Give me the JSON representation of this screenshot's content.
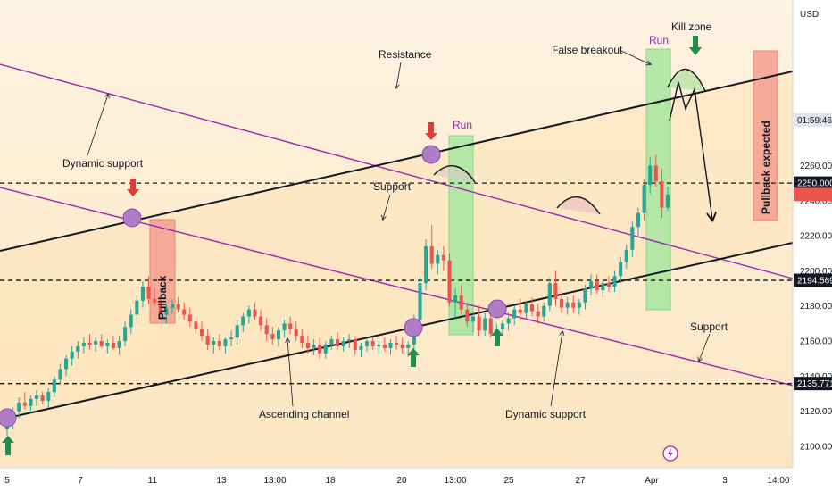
{
  "chart_data": {
    "type": "candlestick",
    "currency": "USD",
    "y_range": [
      2090,
      2275
    ],
    "y_ticks": [
      2100,
      2120,
      2140,
      2160,
      2180,
      2200,
      2220,
      2240,
      2260
    ],
    "y_tick_labels": [
      "2100.000",
      "2120.000",
      "2140.000",
      "2160.000",
      "2180.000",
      "2200.000",
      "2220.000",
      "2240.000",
      "2260.000"
    ],
    "x_tick_labels": [
      "5",
      "7",
      "11",
      "13",
      "13:00",
      "18",
      "20",
      "13:00",
      "25",
      "27",
      "Apr",
      "3",
      "14:00"
    ],
    "price_levels": [
      {
        "value": 2250.0,
        "label": "2250.000"
      },
      {
        "value": 2194.569,
        "label": "2194.569"
      },
      {
        "value": 2135.771,
        "label": "2135.771"
      }
    ],
    "countdown": "01:59:46",
    "current_price": 2243.5,
    "candles": [
      [
        2110,
        2118,
        2106,
        2114
      ],
      [
        2114,
        2122,
        2110,
        2120
      ],
      [
        2120,
        2128,
        2116,
        2125
      ],
      [
        2125,
        2131,
        2121,
        2123
      ],
      [
        2123,
        2129,
        2119,
        2127
      ],
      [
        2127,
        2132,
        2123,
        2129
      ],
      [
        2129,
        2131,
        2124,
        2126
      ],
      [
        2126,
        2133,
        2122,
        2131
      ],
      [
        2131,
        2140,
        2128,
        2138
      ],
      [
        2138,
        2147,
        2135,
        2144
      ],
      [
        2144,
        2152,
        2140,
        2150
      ],
      [
        2150,
        2157,
        2146,
        2154
      ],
      [
        2154,
        2160,
        2150,
        2157
      ],
      [
        2157,
        2162,
        2153,
        2159
      ],
      [
        2159,
        2164,
        2155,
        2158
      ],
      [
        2158,
        2162,
        2154,
        2160
      ],
      [
        2160,
        2164,
        2156,
        2157
      ],
      [
        2157,
        2161,
        2153,
        2159
      ],
      [
        2159,
        2163,
        2155,
        2156
      ],
      [
        2156,
        2163,
        2152,
        2160
      ],
      [
        2160,
        2171,
        2157,
        2168
      ],
      [
        2168,
        2178,
        2164,
        2175
      ],
      [
        2175,
        2186,
        2171,
        2183
      ],
      [
        2183,
        2194,
        2179,
        2191
      ],
      [
        2191,
        2197,
        2181,
        2184
      ],
      [
        2184,
        2190,
        2180,
        2182
      ],
      [
        2182,
        2186,
        2172,
        2175
      ],
      [
        2175,
        2181,
        2170,
        2179
      ],
      [
        2179,
        2184,
        2175,
        2181
      ],
      [
        2181,
        2185,
        2176,
        2178
      ],
      [
        2178,
        2182,
        2172,
        2175
      ],
      [
        2175,
        2179,
        2168,
        2171
      ],
      [
        2171,
        2175,
        2164,
        2167
      ],
      [
        2167,
        2171,
        2160,
        2163
      ],
      [
        2163,
        2167,
        2155,
        2158
      ],
      [
        2158,
        2162,
        2153,
        2160
      ],
      [
        2160,
        2164,
        2155,
        2157
      ],
      [
        2157,
        2162,
        2153,
        2161
      ],
      [
        2161,
        2166,
        2157,
        2162
      ],
      [
        2162,
        2172,
        2158,
        2169
      ],
      [
        2169,
        2176,
        2165,
        2174
      ],
      [
        2174,
        2180,
        2170,
        2178
      ],
      [
        2178,
        2182,
        2172,
        2174
      ],
      [
        2174,
        2178,
        2166,
        2169
      ],
      [
        2169,
        2173,
        2160,
        2164
      ],
      [
        2164,
        2168,
        2158,
        2161
      ],
      [
        2161,
        2168,
        2157,
        2166
      ],
      [
        2166,
        2172,
        2162,
        2170
      ],
      [
        2170,
        2174,
        2164,
        2167
      ],
      [
        2167,
        2171,
        2160,
        2163
      ],
      [
        2163,
        2167,
        2156,
        2159
      ],
      [
        2159,
        2163,
        2153,
        2156
      ],
      [
        2156,
        2161,
        2152,
        2158
      ],
      [
        2158,
        2162,
        2150,
        2153
      ],
      [
        2153,
        2160,
        2150,
        2158
      ],
      [
        2158,
        2163,
        2155,
        2161
      ],
      [
        2161,
        2165,
        2155,
        2157
      ],
      [
        2157,
        2162,
        2154,
        2160
      ],
      [
        2160,
        2164,
        2156,
        2161
      ],
      [
        2161,
        2163,
        2152,
        2155
      ],
      [
        2155,
        2159,
        2151,
        2157
      ],
      [
        2157,
        2161,
        2154,
        2160
      ],
      [
        2160,
        2162,
        2155,
        2157
      ],
      [
        2157,
        2160,
        2153,
        2158
      ],
      [
        2158,
        2162,
        2154,
        2156
      ],
      [
        2156,
        2161,
        2152,
        2159
      ],
      [
        2159,
        2163,
        2155,
        2158
      ],
      [
        2158,
        2162,
        2153,
        2156
      ],
      [
        2156,
        2160,
        2151,
        2158
      ],
      [
        2158,
        2175,
        2155,
        2172
      ],
      [
        2172,
        2197,
        2168,
        2193
      ],
      [
        2193,
        2218,
        2189,
        2214
      ],
      [
        2214,
        2226,
        2201,
        2204
      ],
      [
        2204,
        2212,
        2198,
        2209
      ],
      [
        2209,
        2214,
        2200,
        2206
      ],
      [
        2206,
        2210,
        2180,
        2182
      ],
      [
        2182,
        2190,
        2173,
        2186
      ],
      [
        2186,
        2192,
        2175,
        2178
      ],
      [
        2178,
        2182,
        2168,
        2171
      ],
      [
        2171,
        2177,
        2165,
        2174
      ],
      [
        2174,
        2180,
        2163,
        2166
      ],
      [
        2166,
        2176,
        2163,
        2173
      ],
      [
        2173,
        2178,
        2162,
        2164
      ],
      [
        2164,
        2170,
        2160,
        2167
      ],
      [
        2167,
        2172,
        2163,
        2170
      ],
      [
        2170,
        2176,
        2166,
        2173
      ],
      [
        2173,
        2180,
        2169,
        2178
      ],
      [
        2178,
        2184,
        2172,
        2176
      ],
      [
        2176,
        2183,
        2173,
        2181
      ],
      [
        2181,
        2185,
        2174,
        2177
      ],
      [
        2177,
        2181,
        2170,
        2174
      ],
      [
        2174,
        2182,
        2171,
        2180
      ],
      [
        2180,
        2196,
        2177,
        2193
      ],
      [
        2193,
        2200,
        2180,
        2184
      ],
      [
        2184,
        2188,
        2176,
        2179
      ],
      [
        2179,
        2185,
        2175,
        2182
      ],
      [
        2182,
        2186,
        2176,
        2179
      ],
      [
        2179,
        2184,
        2175,
        2182
      ],
      [
        2182,
        2192,
        2178,
        2190
      ],
      [
        2190,
        2198,
        2186,
        2194
      ],
      [
        2194,
        2198,
        2187,
        2189
      ],
      [
        2189,
        2195,
        2185,
        2193
      ],
      [
        2193,
        2197,
        2188,
        2191
      ],
      [
        2191,
        2200,
        2188,
        2197
      ],
      [
        2197,
        2208,
        2193,
        2205
      ],
      [
        2205,
        2215,
        2201,
        2212
      ],
      [
        2212,
        2228,
        2208,
        2225
      ],
      [
        2225,
        2236,
        2220,
        2233
      ],
      [
        2233,
        2252,
        2229,
        2249
      ],
      [
        2249,
        2265,
        2244,
        2260
      ],
      [
        2260,
        2266,
        2248,
        2251
      ],
      [
        2251,
        2258,
        2230,
        2236
      ],
      [
        2236,
        2248,
        2234,
        2243.5
      ]
    ]
  },
  "annotations": {
    "resistance": "Resistance",
    "false_breakout": "False breakout",
    "run_top": "Run",
    "kill_zone": "Kill zone",
    "dynamic_support_left": "Dynamic support",
    "support_mid": "Support",
    "run_mid": "Run",
    "pullback_left": "Pullback",
    "pullback_expected": "Pullback expected",
    "ascending_channel": "Ascending channel",
    "support_right": "Support",
    "dynamic_support_bottom": "Dynamic support"
  },
  "colors": {
    "up": "#26a69a",
    "down": "#ef5350",
    "channel_line": "#131722",
    "dynamic_support_line": "#9c27b0",
    "marker_fill": "#b07cc6",
    "run_box": "#a5e6a0",
    "pullback_box": "#f7a394",
    "arrow_up": "#1e8e4a",
    "arrow_down": "#e53935"
  }
}
